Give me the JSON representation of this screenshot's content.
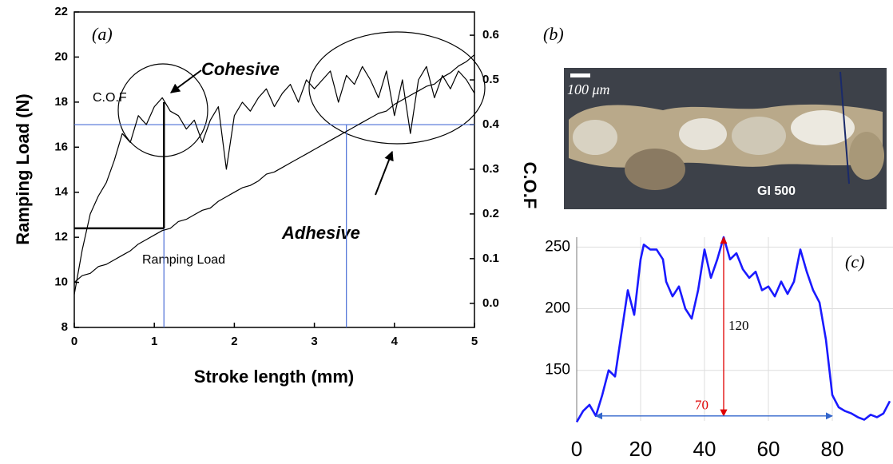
{
  "chart_data": [
    {
      "type": "line",
      "panel_label": "(a)",
      "x_label": "Stroke length (mm)",
      "y_label": "Ramping Load (N)",
      "y2_label": "C.O.F",
      "xlim": [
        0,
        5
      ],
      "xticks": [
        0,
        1,
        2,
        3,
        4,
        5
      ],
      "ylim": [
        8,
        22
      ],
      "yticks": [
        8,
        10,
        12,
        14,
        16,
        18,
        20,
        22
      ],
      "y2lim": [
        -0.054,
        0.652
      ],
      "y2ticks": [
        {
          "value": 0,
          "label": "0.0"
        },
        0.1,
        0.2,
        0.3,
        0.4,
        0.5,
        0.6
      ],
      "x": [
        0,
        0.1,
        0.2,
        0.3,
        0.4,
        0.5,
        0.6,
        0.7,
        0.8,
        0.9,
        1,
        1.1,
        1.2,
        1.3,
        1.4,
        1.5,
        1.6,
        1.7,
        1.8,
        1.9,
        2,
        2.1,
        2.2,
        2.3,
        2.4,
        2.5,
        2.6,
        2.7,
        2.8,
        2.9,
        3,
        3.1,
        3.2,
        3.3,
        3.4,
        3.5,
        3.6,
        3.7,
        3.8,
        3.9,
        4,
        4.1,
        4.2,
        4.3,
        4.4,
        4.5,
        4.6,
        4.7,
        4.8,
        4.9,
        5
      ],
      "series": [
        {
          "name": "Ramping Load",
          "color": "#000000",
          "axis": "y",
          "values": [
            10.0,
            10.3,
            10.4,
            10.7,
            10.8,
            11.0,
            11.2,
            11.4,
            11.7,
            11.9,
            12.1,
            12.3,
            12.4,
            12.7,
            12.8,
            13.0,
            13.2,
            13.3,
            13.6,
            13.8,
            14.0,
            14.2,
            14.3,
            14.5,
            14.8,
            14.9,
            15.1,
            15.3,
            15.5,
            15.7,
            15.9,
            16.1,
            16.3,
            16.5,
            16.7,
            16.9,
            17.1,
            17.3,
            17.5,
            17.6,
            17.9,
            18.1,
            18.3,
            18.5,
            18.7,
            18.8,
            19.1,
            19.3,
            19.6,
            19.8,
            20.1
          ]
        },
        {
          "name": "C.O.F",
          "color": "#000000",
          "axis": "y2",
          "values": [
            0.02,
            0.12,
            0.2,
            0.24,
            0.27,
            0.32,
            0.38,
            0.36,
            0.42,
            0.4,
            0.44,
            0.46,
            0.43,
            0.42,
            0.39,
            0.41,
            0.36,
            0.41,
            0.44,
            0.3,
            0.42,
            0.45,
            0.43,
            0.46,
            0.48,
            0.44,
            0.47,
            0.49,
            0.45,
            0.5,
            0.48,
            0.5,
            0.52,
            0.45,
            0.51,
            0.49,
            0.53,
            0.5,
            0.46,
            0.52,
            0.42,
            0.5,
            0.38,
            0.5,
            0.53,
            0.46,
            0.51,
            0.48,
            0.52,
            0.5,
            0.47
          ]
        }
      ],
      "guides": [
        {
          "x": [
            0,
            5
          ],
          "y": [
            17,
            17
          ],
          "color": "#4b6fd6"
        },
        {
          "x": [
            1.12,
            1.12
          ],
          "y": [
            8,
            17
          ],
          "color": "#4b6fd6"
        },
        {
          "x": [
            3.4,
            3.4
          ],
          "y": [
            8,
            17
          ],
          "color": "#4b6fd6"
        },
        {
          "x": [
            0,
            1.12
          ],
          "y": [
            12.4,
            12.4
          ],
          "color": "#000000"
        },
        {
          "x": [
            1.12,
            1.12
          ],
          "y": [
            12.4,
            18
          ],
          "color": "#000000"
        }
      ],
      "annotations": [
        "Cohesive",
        "Adhesive"
      ]
    },
    {
      "type": "line",
      "panel_label": "(c)",
      "xlim": [
        0,
        99
      ],
      "xticks": [
        0,
        20,
        40,
        60,
        80
      ],
      "ylim": [
        109,
        258
      ],
      "yticks": [
        150,
        200,
        250
      ],
      "grid": true,
      "x": [
        0,
        2,
        4,
        6,
        8,
        10,
        12,
        14,
        16,
        18,
        20,
        21,
        23,
        25,
        27,
        28,
        30,
        32,
        34,
        36,
        38,
        40,
        42,
        44,
        46,
        48,
        50,
        52,
        54,
        56,
        58,
        60,
        62,
        64,
        66,
        68,
        70,
        72,
        74,
        76,
        78,
        80,
        82,
        84,
        86,
        88,
        90,
        92,
        94,
        96,
        98
      ],
      "series": [
        {
          "name": null,
          "color": "#1a1aff",
          "values": [
            108,
            117,
            122,
            113,
            130,
            150,
            145,
            180,
            215,
            195,
            240,
            252,
            248,
            248,
            240,
            222,
            210,
            218,
            200,
            192,
            215,
            248,
            225,
            240,
            258,
            240,
            245,
            232,
            225,
            230,
            215,
            218,
            210,
            222,
            212,
            222,
            248,
            230,
            215,
            205,
            175,
            130,
            120,
            117,
            115,
            112,
            110,
            114,
            112,
            115,
            125
          ]
        }
      ],
      "arrows": [
        {
          "label": "120",
          "x": [
            46,
            46
          ],
          "y": [
            113,
            258
          ],
          "color": "#e00000",
          "label_color": "#000000"
        },
        {
          "label": "70",
          "x": [
            6,
            80
          ],
          "y": [
            113,
            113
          ],
          "color": "#3366cc",
          "label_color": "#e00000"
        }
      ]
    }
  ],
  "photo": {
    "panel_label": "(b)",
    "scale": "100 μm",
    "caption": "GI 500"
  }
}
